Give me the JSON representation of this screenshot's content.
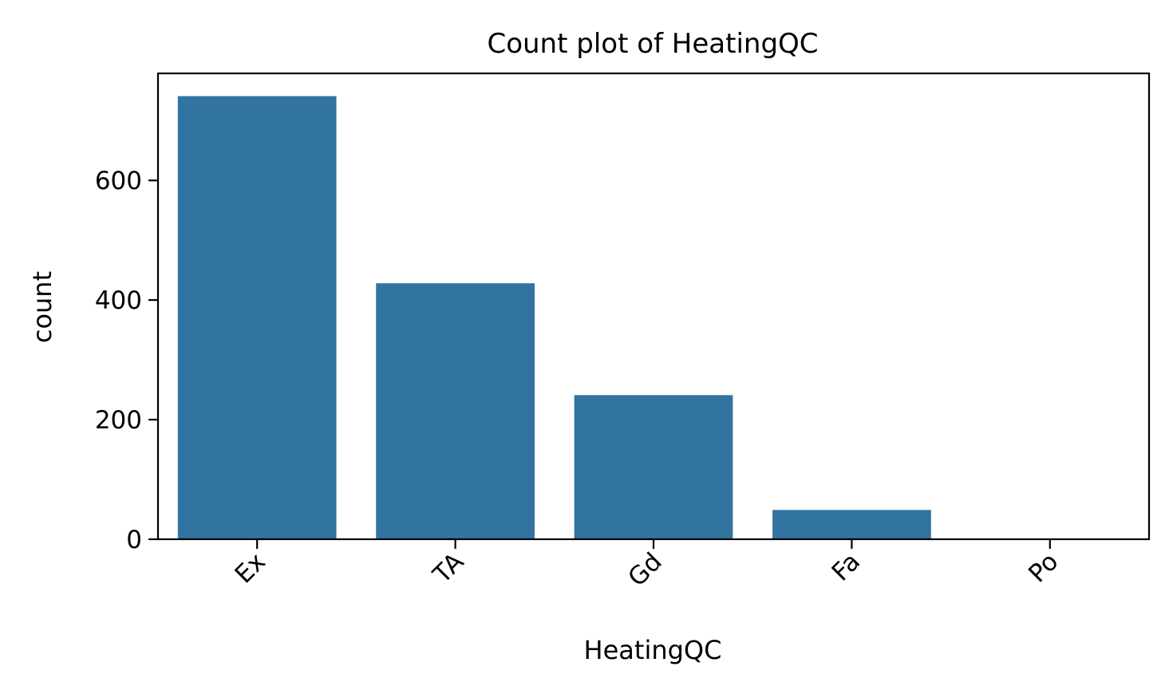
{
  "chart_data": {
    "type": "bar",
    "title": "Count plot of HeatingQC",
    "xlabel": "HeatingQC",
    "ylabel": "count",
    "categories": [
      "Ex",
      "TA",
      "Gd",
      "Fa",
      "Po"
    ],
    "values": [
      741,
      428,
      241,
      49,
      1
    ],
    "yticks": [
      0,
      200,
      400,
      600
    ],
    "ylim": [
      0,
      779
    ],
    "bar_color": "#3274a1",
    "grid": false,
    "xtick_rotation": -45
  }
}
